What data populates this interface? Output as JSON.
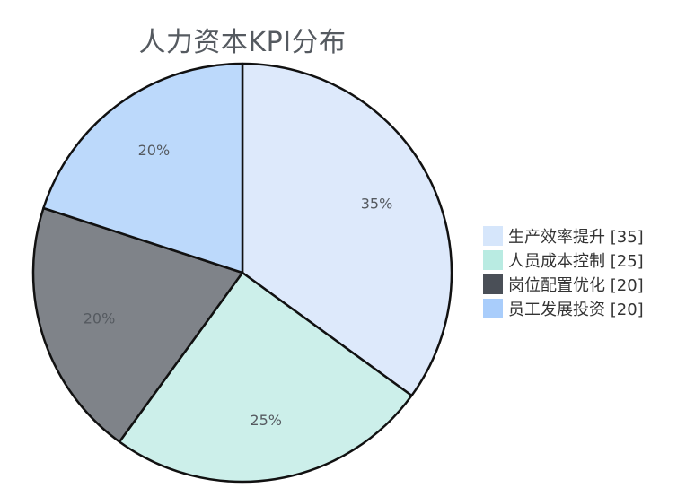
{
  "chart_data": {
    "type": "pie",
    "title": "人力资本KPI分布",
    "categories": [
      "生产效率提升",
      "人员成本控制",
      "岗位配置优化",
      "员工发展投资"
    ],
    "values": [
      35,
      25,
      20,
      20
    ],
    "percent_labels": [
      "35%",
      "25%",
      "20%",
      "20%"
    ],
    "legend_labels": [
      "生产效率提升 [35]",
      "人员成本控制 [25]",
      "岗位配置优化 [20]",
      "员工发展投资 [20]"
    ],
    "slice_colors": [
      "#dde9fb",
      "#ccefea",
      "#7f8389",
      "#bcd9fb"
    ],
    "legend_colors": [
      "#d6e6fb",
      "#b9ebe2",
      "#4a4f57",
      "#a9cdfb"
    ],
    "outline_color": "#111111",
    "legend": "right",
    "start_angle": "12 o'clock",
    "direction": "clockwise"
  }
}
